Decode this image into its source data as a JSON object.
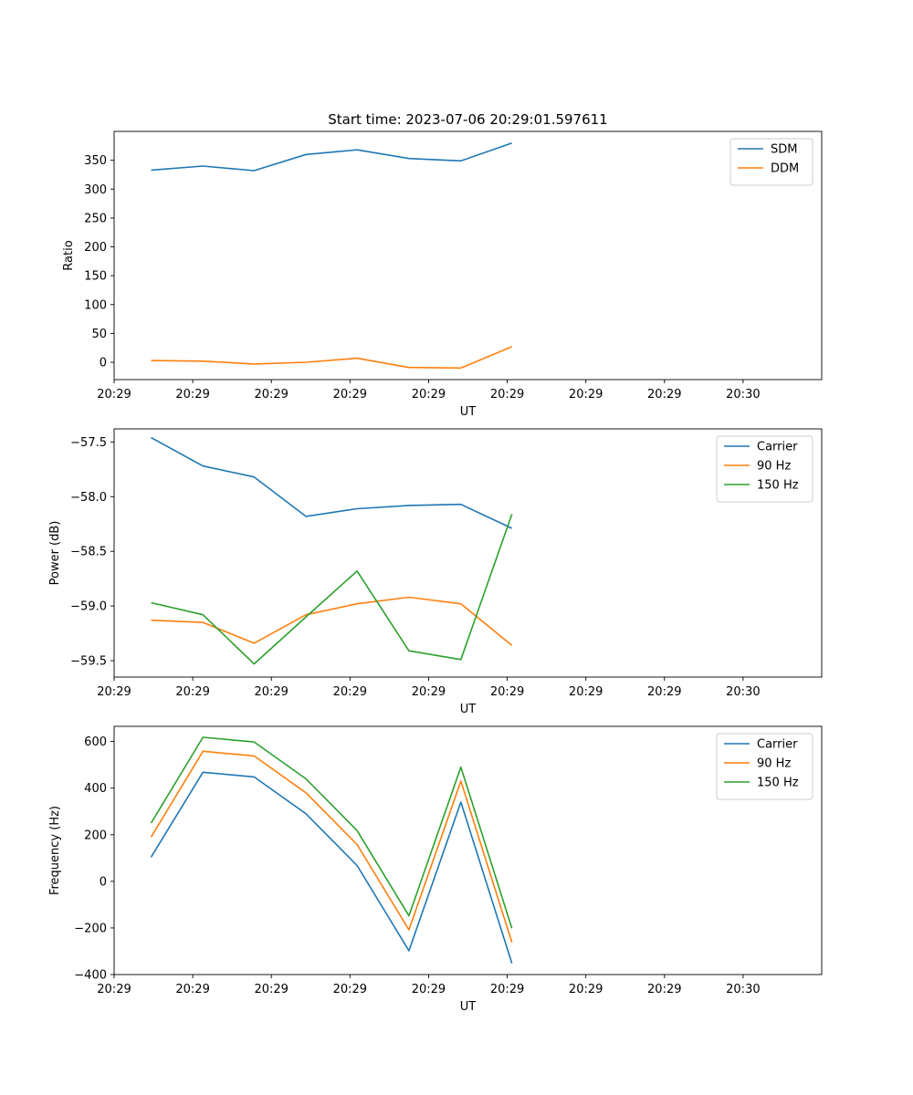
{
  "chart_data": [
    {
      "type": "line",
      "title": "Start time: 2023-07-06 20:29:01.597611",
      "xlabel": "UT",
      "ylabel": "Ratio",
      "xlim": [
        0,
        9
      ],
      "ylim": [
        -30,
        400
      ],
      "x_ticks": [
        0,
        1,
        2,
        3,
        4,
        5,
        6,
        7,
        8
      ],
      "x_tick_labels": [
        "20:29",
        "20:29",
        "20:29",
        "20:29",
        "20:29",
        "20:29",
        "20:29",
        "20:29",
        "20:30"
      ],
      "y_ticks": [
        0,
        50,
        100,
        150,
        200,
        250,
        300,
        350
      ],
      "y_tick_labels": [
        "0",
        "50",
        "100",
        "150",
        "200",
        "250",
        "300",
        "350"
      ],
      "x": [
        0.47,
        1.13,
        1.78,
        2.44,
        3.09,
        3.75,
        4.41,
        5.06
      ],
      "legend_position": "upper-right",
      "series": [
        {
          "name": "SDM",
          "color": "#1f77b4",
          "values": [
            333,
            340,
            332,
            360,
            368,
            353,
            349,
            380
          ]
        },
        {
          "name": "DDM",
          "color": "#ff7f0e",
          "values": [
            3,
            2,
            -3,
            0,
            7,
            -9,
            -10,
            27
          ]
        }
      ]
    },
    {
      "type": "line",
      "title": "",
      "xlabel": "UT",
      "ylabel": "Power (dB)",
      "xlim": [
        0,
        9
      ],
      "ylim": [
        -59.65,
        -57.38
      ],
      "x_ticks": [
        0,
        1,
        2,
        3,
        4,
        5,
        6,
        7,
        8
      ],
      "x_tick_labels": [
        "20:29",
        "20:29",
        "20:29",
        "20:29",
        "20:29",
        "20:29",
        "20:29",
        "20:29",
        "20:30"
      ],
      "y_ticks": [
        -59.5,
        -59.0,
        -58.5,
        -58.0,
        -57.5
      ],
      "y_tick_labels": [
        "−59.5",
        "−59.0",
        "−58.5",
        "−58.0",
        "−57.5"
      ],
      "x": [
        0.47,
        1.13,
        1.78,
        2.44,
        3.09,
        3.75,
        4.41,
        5.06
      ],
      "legend_position": "upper-right",
      "series": [
        {
          "name": "Carrier",
          "color": "#1f77b4",
          "values": [
            -57.46,
            -57.72,
            -57.82,
            -58.18,
            -58.11,
            -58.08,
            -58.07,
            -58.29
          ]
        },
        {
          "name": "90 Hz",
          "color": "#ff7f0e",
          "values": [
            -59.13,
            -59.15,
            -59.34,
            -59.08,
            -58.98,
            -58.92,
            -58.98,
            -59.36
          ]
        },
        {
          "name": "150 Hz",
          "color": "#2ca02c",
          "values": [
            -58.97,
            -59.08,
            -59.53,
            -59.1,
            -58.68,
            -59.41,
            -59.49,
            -58.16
          ]
        }
      ]
    },
    {
      "type": "line",
      "title": "",
      "xlabel": "UT",
      "ylabel": "Frequency (Hz)",
      "xlim": [
        0,
        9
      ],
      "ylim": [
        -400,
        665
      ],
      "x_ticks": [
        0,
        1,
        2,
        3,
        4,
        5,
        6,
        7,
        8
      ],
      "x_tick_labels": [
        "20:29",
        "20:29",
        "20:29",
        "20:29",
        "20:29",
        "20:29",
        "20:29",
        "20:29",
        "20:30"
      ],
      "y_ticks": [
        -400,
        -200,
        0,
        200,
        400,
        600
      ],
      "y_tick_labels": [
        "−400",
        "−200",
        "0",
        "200",
        "400",
        "600"
      ],
      "x": [
        0.47,
        1.13,
        1.78,
        2.44,
        3.09,
        3.75,
        4.41,
        5.06
      ],
      "legend_position": "upper-right",
      "series": [
        {
          "name": "Carrier",
          "color": "#1f77b4",
          "values": [
            104,
            468,
            448,
            290,
            68,
            -298,
            340,
            -352
          ]
        },
        {
          "name": "90 Hz",
          "color": "#ff7f0e",
          "values": [
            190,
            558,
            538,
            380,
            158,
            -208,
            430,
            -262
          ]
        },
        {
          "name": "150 Hz",
          "color": "#2ca02c",
          "values": [
            250,
            618,
            598,
            440,
            218,
            -148,
            490,
            -202
          ]
        }
      ]
    }
  ]
}
